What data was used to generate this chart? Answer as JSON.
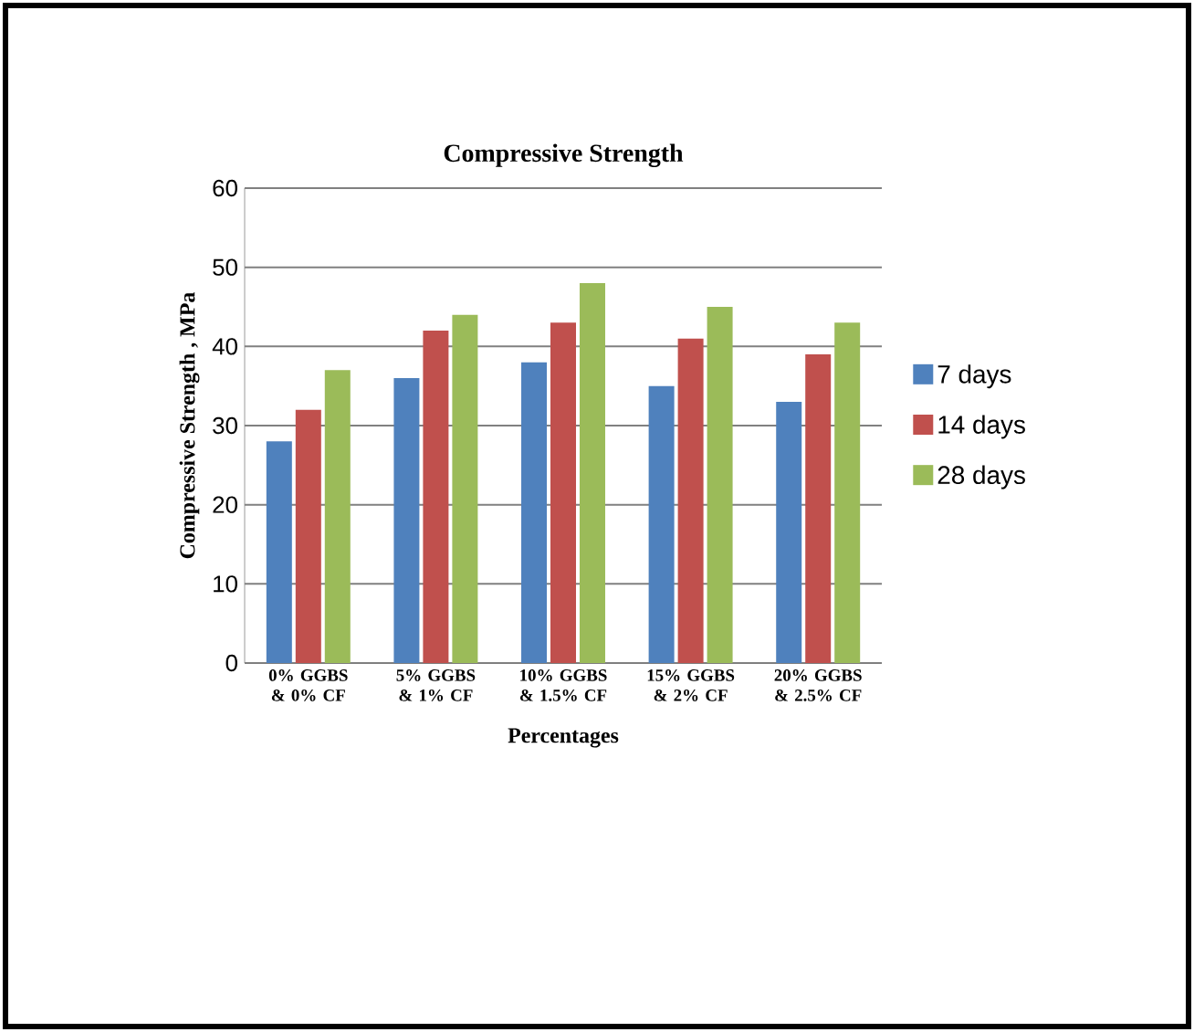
{
  "chart_data": {
    "type": "bar",
    "title": "Compressive Strength",
    "xlabel": "Percentages",
    "ylabel": "Compressive Strength , MPa",
    "categories": [
      "0% GGBS & 0% CF",
      "5% GGBS & 1% CF",
      "10% GGBS & 1.5% CF",
      "15% GGBS & 2% CF",
      "20% GGBS & 2.5% CF"
    ],
    "series": [
      {
        "name": "7 days",
        "color": "#4f81bd",
        "values": [
          28,
          36,
          38,
          35,
          33
        ]
      },
      {
        "name": "14 days",
        "color": "#c0504d",
        "values": [
          32,
          42,
          43,
          41,
          39
        ]
      },
      {
        "name": "28 days",
        "color": "#9bbb59",
        "values": [
          37,
          44,
          48,
          45,
          43
        ]
      }
    ],
    "ylim": [
      0,
      60
    ],
    "yticks": [
      0,
      10,
      20,
      30,
      40,
      50,
      60
    ],
    "grid": "y",
    "legend": "right"
  }
}
